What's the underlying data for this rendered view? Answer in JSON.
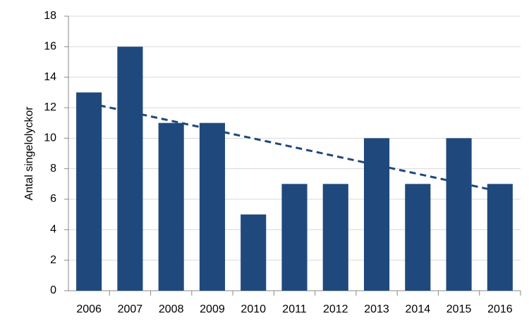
{
  "chart_data": {
    "type": "bar",
    "y_label": "Antal singelolyckor",
    "categories": [
      "2006",
      "2007",
      "2008",
      "2009",
      "2010",
      "2011",
      "2012",
      "2013",
      "2014",
      "2015",
      "2016"
    ],
    "values": [
      13,
      16,
      11,
      11,
      5,
      7,
      7,
      10,
      7,
      10,
      7
    ],
    "color": "#1f497d",
    "trendline": {
      "values": [
        12.3,
        6.5
      ],
      "color": "#1f497d",
      "dashed": true
    },
    "ylim": [
      0,
      18
    ],
    "yticks": [
      0,
      2,
      4,
      6,
      8,
      10,
      12,
      14,
      16,
      18
    ],
    "grid": true
  }
}
